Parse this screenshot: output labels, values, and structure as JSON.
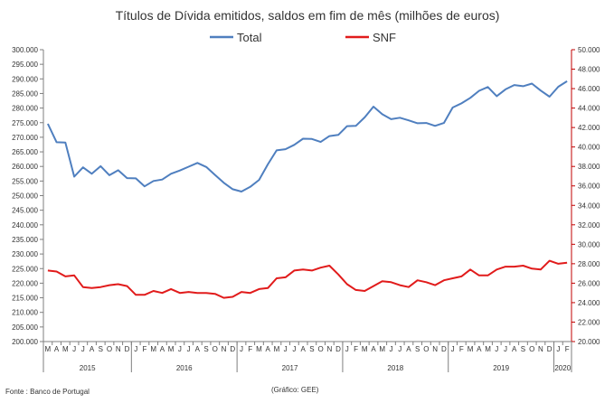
{
  "chart_data": {
    "type": "line",
    "title": "Títulos de Dívida emitidos, saldos em fim de mês  (milhões de euros)",
    "legend_placement": "top",
    "grid": false,
    "series": [
      {
        "name": "Total",
        "axis": "left",
        "color": "#4f7fbf",
        "values": [
          274600,
          268300,
          268200,
          256500,
          259700,
          257500,
          260100,
          257000,
          258700,
          256000,
          255900,
          253200,
          255000,
          255500,
          257500,
          258600,
          259900,
          261200,
          259800,
          257100,
          254400,
          252200,
          251400,
          253000,
          255400,
          260700,
          265500,
          265900,
          267400,
          269500,
          269400,
          268400,
          270400,
          270800,
          273800,
          273900,
          276800,
          280500,
          277900,
          276200,
          276700,
          275800,
          274800,
          274900,
          273900,
          274900,
          280200,
          281600,
          283500,
          285900,
          287200,
          284100,
          286400,
          287900,
          287500,
          288400,
          286000,
          283900,
          287300,
          289200
        ]
      },
      {
        "name": "SNF",
        "axis": "right",
        "color": "#e11b1b",
        "values": [
          27.3,
          27.2,
          26.7,
          26.8,
          25.6,
          25.5,
          25.6,
          25.8,
          25.9,
          25.7,
          24.8,
          24.8,
          25.2,
          25.0,
          25.4,
          25.0,
          25.1,
          25.0,
          25.0,
          24.9,
          24.5,
          24.6,
          25.1,
          25.0,
          25.4,
          25.5,
          26.5,
          26.6,
          27.3,
          27.4,
          27.3,
          27.6,
          27.8,
          26.9,
          25.9,
          25.3,
          25.2,
          25.7,
          26.2,
          26.1,
          25.8,
          25.6,
          26.3,
          26.1,
          25.8,
          26.3,
          26.5,
          26.7,
          27.4,
          26.8,
          26.8,
          27.4,
          27.7,
          27.7,
          27.8,
          27.5,
          27.4,
          28.3,
          28.0,
          28.1
        ]
      }
    ],
    "x_months": [
      "M",
      "A",
      "M",
      "J",
      "J",
      "A",
      "S",
      "O",
      "N",
      "D",
      "J",
      "F",
      "M",
      "A",
      "M",
      "J",
      "J",
      "A",
      "S",
      "O",
      "N",
      "D",
      "J",
      "F",
      "M",
      "A",
      "M",
      "J",
      "J",
      "A",
      "S",
      "O",
      "N",
      "D",
      "J",
      "F",
      "M",
      "A",
      "M",
      "J",
      "J",
      "A",
      "S",
      "O",
      "N",
      "D",
      "J",
      "F",
      "M",
      "A",
      "M",
      "J",
      "J",
      "A",
      "S",
      "O",
      "N",
      "D",
      "J",
      "F"
    ],
    "years": [
      {
        "label": "2015",
        "start": 0,
        "end": 9
      },
      {
        "label": "2016",
        "start": 10,
        "end": 21
      },
      {
        "label": "2017",
        "start": 22,
        "end": 33
      },
      {
        "label": "2018",
        "start": 34,
        "end": 45
      },
      {
        "label": "2019",
        "start": 46,
        "end": 57
      },
      {
        "label": "2020",
        "start": 58,
        "end": 59
      }
    ],
    "y_left": {
      "min": 200000,
      "max": 300000,
      "step": 5000,
      "tick_labels": [
        "200.000",
        "205.000",
        "210.000",
        "215.000",
        "220.000",
        "225.000",
        "230.000",
        "235.000",
        "240.000",
        "245.000",
        "250.000",
        "255.000",
        "260.000",
        "265.000",
        "270.000",
        "275.000",
        "280.000",
        "285.000",
        "290.000",
        "295.000",
        "300.000"
      ]
    },
    "y_right": {
      "min": 20,
      "max": 50,
      "step": 2,
      "tick_labels": [
        "20.000",
        "22.000",
        "24.000",
        "26.000",
        "28.000",
        "30.000",
        "32.000",
        "34.000",
        "36.000",
        "38.000",
        "40.000",
        "42.000",
        "44.000",
        "46.000",
        "48.000",
        "50.000"
      ]
    }
  },
  "source_note": "Fonte : Banco de Portugal",
  "credit_note": "(Gráfico: GEE)"
}
